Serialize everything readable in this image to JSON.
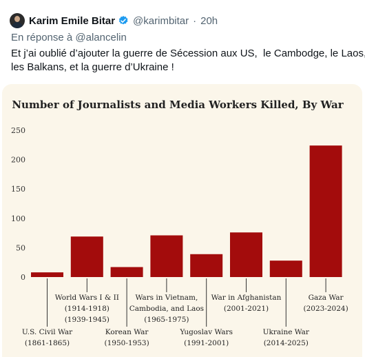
{
  "tweet": {
    "author_name": "Karim Emile Bitar",
    "handle": "@karimbitar",
    "separator": "·",
    "time": "20h",
    "reply_prefix": "En réponse à",
    "reply_to": "@alancelin",
    "text_line1": "Et j’ai oublié d’ajouter la guerre de Sécession aux US,  le Cambodge, le Laos,",
    "text_line2": "les Balkans, et la guerre d’Ukraine !",
    "colors": {
      "verified": "#1d9bf0",
      "bar": "#a30c0c",
      "card_bg": "#fbf6ea"
    }
  },
  "chart_data": {
    "type": "bar",
    "title": "Number of Journalists and Media Workers Killed, By War",
    "ylim": [
      0,
      250
    ],
    "yticks": [
      0,
      50,
      100,
      150,
      200,
      250
    ],
    "grid": false,
    "categories": [
      [
        "U.S. Civil War",
        "(1861-1865)"
      ],
      [
        "World Wars I & II",
        "(1914-1918)",
        "(1939-1945)"
      ],
      [
        "Korean War",
        "(1950-1953)"
      ],
      [
        "Wars in Vietnam,",
        "Cambodia, and Laos",
        "(1965-1975)"
      ],
      [
        "Yugoslav Wars",
        "(1991-2001)"
      ],
      [
        "War in Afghanistan",
        "(2001-2021)"
      ],
      [
        "Ukraine War",
        "(2014-2025)"
      ],
      [
        "Gaza War",
        "(2023-2024)"
      ]
    ],
    "values": [
      8,
      69,
      17,
      71,
      39,
      76,
      28,
      224
    ],
    "label_level": [
      "low",
      "high",
      "low",
      "high",
      "low",
      "high",
      "low",
      "high"
    ]
  }
}
